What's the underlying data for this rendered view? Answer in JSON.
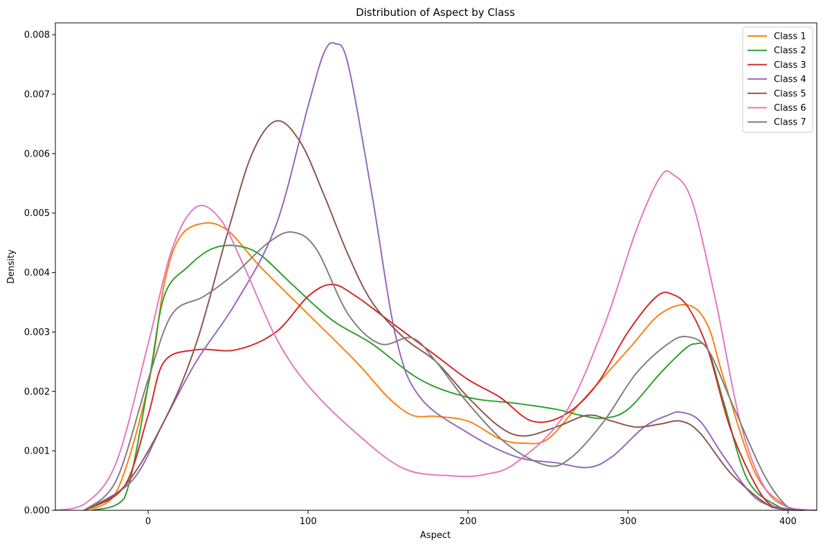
{
  "chart_data": {
    "type": "line",
    "title": "Distribution of Aspect by Class",
    "xlabel": "Aspect",
    "ylabel": "Density",
    "xlim": [
      -58,
      418
    ],
    "ylim": [
      0,
      0.0082
    ],
    "xticks": [
      0,
      100,
      200,
      300,
      400
    ],
    "yticks": [
      0.0,
      0.001,
      0.002,
      0.003,
      0.004,
      0.005,
      0.006,
      0.007,
      0.008
    ],
    "ytick_labels": [
      "0.000",
      "0.001",
      "0.002",
      "0.003",
      "0.004",
      "0.005",
      "0.006",
      "0.007",
      "0.008"
    ],
    "grid": false,
    "legend_position": "top-right",
    "series": [
      {
        "name": "Class 1",
        "color": "#ff7f0e",
        "x": [
          -40,
          -20,
          0,
          10,
          20,
          35,
          50,
          70,
          100,
          130,
          150,
          165,
          180,
          200,
          220,
          235,
          250,
          270,
          300,
          320,
          338,
          350,
          360,
          380,
          400,
          408
        ],
        "y": [
          0.0,
          0.0003,
          0.0021,
          0.0038,
          0.0046,
          0.00483,
          0.0047,
          0.0041,
          0.0033,
          0.0025,
          0.0019,
          0.0016,
          0.00158,
          0.0015,
          0.0012,
          0.00113,
          0.0012,
          0.0018,
          0.0027,
          0.0033,
          0.00345,
          0.0031,
          0.0022,
          0.0006,
          5e-05,
          0.0
        ]
      },
      {
        "name": "Class 2",
        "color": "#2ca02c",
        "x": [
          -35,
          -15,
          0,
          10,
          25,
          40,
          55,
          70,
          90,
          115,
          140,
          170,
          200,
          230,
          255,
          270,
          285,
          300,
          320,
          335,
          342,
          350,
          360,
          375,
          395,
          405
        ],
        "y": [
          0.0,
          0.0002,
          0.0021,
          0.0036,
          0.0041,
          0.0044,
          0.00445,
          0.0043,
          0.0038,
          0.0032,
          0.0028,
          0.0022,
          0.0019,
          0.0018,
          0.0017,
          0.0016,
          0.00155,
          0.0017,
          0.0023,
          0.0027,
          0.0028,
          0.0027,
          0.0018,
          0.0005,
          5e-05,
          0.0
        ]
      },
      {
        "name": "Class 3",
        "color": "#d62728",
        "x": [
          -40,
          -15,
          0,
          10,
          30,
          55,
          80,
          100,
          115,
          130,
          150,
          180,
          200,
          220,
          240,
          260,
          280,
          300,
          318,
          328,
          338,
          350,
          365,
          385,
          400,
          410
        ],
        "y": [
          0.0,
          0.0004,
          0.0016,
          0.0025,
          0.0027,
          0.0027,
          0.003,
          0.0036,
          0.0038,
          0.0036,
          0.0032,
          0.0026,
          0.0022,
          0.0019,
          0.0015,
          0.0016,
          0.0021,
          0.003,
          0.0036,
          0.00363,
          0.0034,
          0.0027,
          0.0013,
          0.0002,
          2e-05,
          0.0
        ]
      },
      {
        "name": "Class 4",
        "color": "#9467bd",
        "x": [
          -40,
          -10,
          10,
          30,
          55,
          80,
          100,
          110,
          117,
          125,
          140,
          155,
          170,
          200,
          230,
          255,
          275,
          290,
          310,
          325,
          333,
          345,
          360,
          380,
          400,
          410
        ],
        "y": [
          0.0,
          0.0005,
          0.0015,
          0.0025,
          0.0035,
          0.0048,
          0.0068,
          0.0077,
          0.00785,
          0.0075,
          0.0053,
          0.0029,
          0.0019,
          0.0013,
          0.0009,
          0.0008,
          0.00072,
          0.0009,
          0.0014,
          0.0016,
          0.00165,
          0.0015,
          0.0009,
          0.0002,
          2e-05,
          0.0
        ]
      },
      {
        "name": "Class 5",
        "color": "#8c564b",
        "x": [
          -40,
          -15,
          10,
          30,
          50,
          65,
          80,
          95,
          110,
          125,
          140,
          160,
          180,
          200,
          220,
          235,
          255,
          275,
          290,
          305,
          320,
          333,
          345,
          365,
          390,
          405
        ],
        "y": [
          0.0,
          0.0004,
          0.0015,
          0.0028,
          0.0047,
          0.006,
          0.00655,
          0.0062,
          0.0053,
          0.0043,
          0.0035,
          0.0029,
          0.0025,
          0.0019,
          0.0014,
          0.00125,
          0.0014,
          0.0016,
          0.0015,
          0.0014,
          0.00145,
          0.0015,
          0.0013,
          0.0006,
          5e-05,
          0.0
        ]
      },
      {
        "name": "Class 6",
        "color": "#e377c2",
        "x": [
          -58,
          -40,
          -20,
          0,
          15,
          30,
          45,
          60,
          80,
          100,
          130,
          160,
          190,
          210,
          230,
          260,
          285,
          305,
          320,
          328,
          340,
          355,
          370,
          385,
          400,
          418
        ],
        "y": [
          0.0,
          0.0001,
          0.0008,
          0.0028,
          0.0044,
          0.0051,
          0.0049,
          0.0041,
          0.0029,
          0.0021,
          0.0013,
          0.0007,
          0.00058,
          0.0006,
          0.0008,
          0.0016,
          0.0031,
          0.0047,
          0.0056,
          0.00565,
          0.0052,
          0.0035,
          0.0015,
          0.0004,
          5e-05,
          0.0
        ]
      },
      {
        "name": "Class 7",
        "color": "#7f7f7f",
        "x": [
          -40,
          -20,
          0,
          15,
          35,
          55,
          75,
          90,
          105,
          125,
          145,
          165,
          180,
          200,
          225,
          250,
          265,
          285,
          305,
          325,
          337,
          350,
          365,
          385,
          400,
          410
        ],
        "y": [
          0.0,
          0.0005,
          0.0022,
          0.0033,
          0.0036,
          0.004,
          0.0045,
          0.00468,
          0.0044,
          0.0033,
          0.0028,
          0.0029,
          0.0025,
          0.0018,
          0.0011,
          0.00075,
          0.0009,
          0.0015,
          0.0023,
          0.0028,
          0.00292,
          0.0027,
          0.0018,
          0.0006,
          5e-05,
          0.0
        ]
      }
    ]
  }
}
